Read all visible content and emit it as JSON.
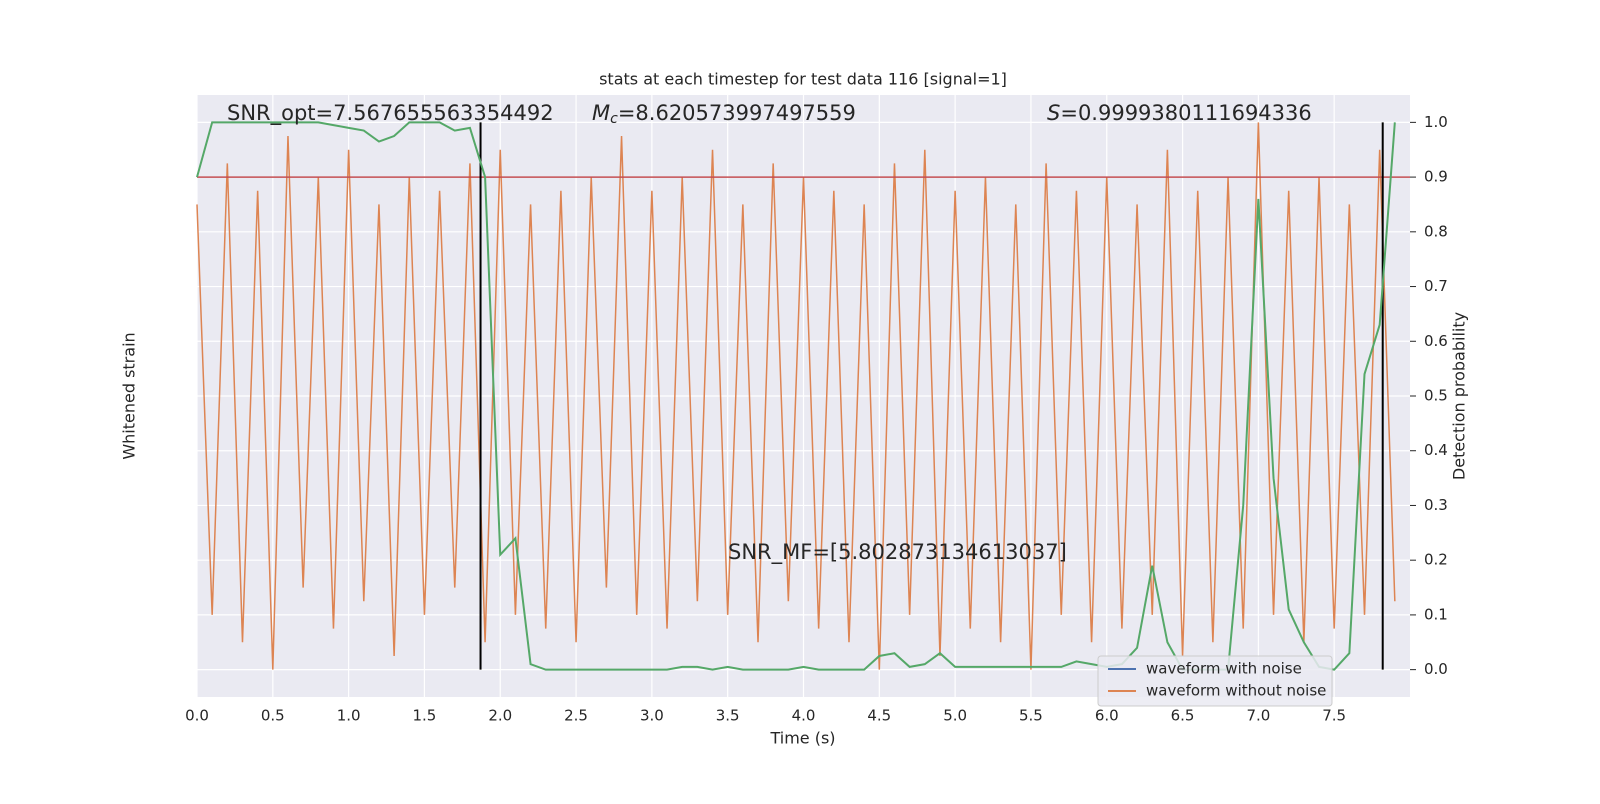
{
  "chart_data": {
    "type": "line",
    "title": "stats at each timestep for test data 116 [signal=1]",
    "x_label": "Time (s)",
    "y_label": "Whitened strain",
    "y2_label": "Detection probability",
    "xlim": [
      0,
      8
    ],
    "xticks": [
      {
        "value": 0,
        "label": "0.0"
      },
      0.5,
      {
        "value": 1,
        "label": "1.0"
      },
      1.5,
      {
        "value": 2,
        "label": "2.0"
      },
      2.5,
      {
        "value": 3,
        "label": "3.0"
      },
      3.5,
      {
        "value": 4,
        "label": "4.0"
      },
      4.5,
      {
        "value": 5,
        "label": "5.0"
      },
      5.5,
      {
        "value": 6,
        "label": "6.0"
      },
      6.5,
      {
        "value": 7,
        "label": "7.0"
      },
      7.5
    ],
    "ylim": [
      -1.1,
      1.1
    ],
    "y2lim": [
      -0.05,
      1.05
    ],
    "y2ticks": [
      {
        "value": 0,
        "label": "0.0"
      },
      0.1,
      0.2,
      0.3,
      0.4,
      0.5,
      0.6,
      0.7,
      0.8,
      0.9,
      {
        "value": 1,
        "label": "1.0"
      }
    ],
    "grid": true,
    "legend": "lower right",
    "x": [
      0,
      0.1,
      0.2,
      0.3,
      0.4,
      0.5,
      0.6,
      0.7,
      0.8,
      0.9,
      1,
      1.1,
      1.2,
      1.3,
      1.4,
      1.5,
      1.6,
      1.7,
      1.8,
      1.9,
      2,
      2.1,
      2.2,
      2.3,
      2.4,
      2.5,
      2.6,
      2.7,
      2.8,
      2.9,
      3,
      3.1,
      3.2,
      3.3,
      3.4,
      3.5,
      3.6,
      3.7,
      3.8,
      3.9,
      4,
      4.1,
      4.2,
      4.3,
      4.4,
      4.5,
      4.6,
      4.7,
      4.8,
      4.9,
      5,
      5.1,
      5.2,
      5.3,
      5.4,
      5.5,
      5.6,
      5.7,
      5.8,
      5.9,
      6,
      6.1,
      6.2,
      6.3,
      6.4,
      6.5,
      6.6,
      6.7,
      6.8,
      6.9,
      7,
      7.1,
      7.2,
      7.3,
      7.4,
      7.5,
      7.6,
      7.7,
      7.8,
      7.9
    ],
    "series": [
      {
        "name": "waveform with noise",
        "color": "#4c72b0"
      },
      {
        "name": "waveform without noise",
        "color": "#dd8452",
        "values": [
          0.7,
          -0.8,
          0.85,
          -0.9,
          0.75,
          -1.0,
          0.95,
          -0.7,
          0.8,
          -0.85,
          0.9,
          -0.75,
          0.7,
          -0.95,
          0.8,
          -0.8,
          0.75,
          -0.7,
          0.85,
          -0.9,
          0.9,
          -0.8,
          0.7,
          -0.85,
          0.75,
          -0.9,
          0.8,
          -0.7,
          0.95,
          -0.8,
          0.75,
          -0.85,
          0.8,
          -0.75,
          0.9,
          -0.8,
          0.7,
          -0.9,
          0.85,
          -0.75,
          0.8,
          -0.85,
          0.75,
          -0.9,
          0.7,
          -1.0,
          0.85,
          -0.8,
          0.9,
          -0.95,
          0.75,
          -0.85,
          0.8,
          -0.9,
          0.7,
          -1.0,
          0.85,
          -0.8,
          0.75,
          -0.9,
          0.8,
          -0.85,
          0.7,
          -0.8,
          0.9,
          -0.95,
          0.75,
          -0.9,
          0.8,
          -0.85,
          1.0,
          -0.8,
          0.75,
          -0.9,
          0.8,
          -0.85,
          0.7,
          -0.8,
          0.9,
          -0.75
        ]
      }
    ],
    "probability": {
      "color": "#55a868",
      "axis": "y2",
      "values": [
        0.9,
        1,
        1,
        1,
        1,
        1,
        1,
        1,
        1,
        0.995,
        0.99,
        0.985,
        0.965,
        0.975,
        1,
        1,
        1,
        0.985,
        0.99,
        0.9,
        0.21,
        0.24,
        0.01,
        0,
        0,
        0,
        0,
        0,
        0,
        0,
        0,
        0,
        0.005,
        0.005,
        0,
        0.005,
        0,
        0,
        0,
        0,
        0.005,
        0,
        0,
        0,
        0,
        0.025,
        0.03,
        0.005,
        0.01,
        0.03,
        0.005,
        0.005,
        0.005,
        0.005,
        0.005,
        0.005,
        0.005,
        0.005,
        0.015,
        0.01,
        0.005,
        0.01,
        0.04,
        0.19,
        0.05,
        0,
        0,
        0,
        0,
        0.3,
        0.86,
        0.35,
        0.11,
        0.05,
        0.005,
        0,
        0.03,
        0.54,
        0.63,
        1
      ]
    },
    "threshold": {
      "color": "#c44e52",
      "value": 0.9
    },
    "vlines": [
      1.87,
      7.82
    ],
    "annotations": {
      "snr_opt": "SNR_opt=7.567655563354492",
      "mc": {
        "symbol": "M",
        "subscript": "c",
        "text": "=8.620573997497559"
      },
      "s": {
        "symbol": "S",
        "text": "=0.9999380111694336"
      },
      "snr_mf": "SNR_MF=[5.802873134613037]"
    }
  }
}
